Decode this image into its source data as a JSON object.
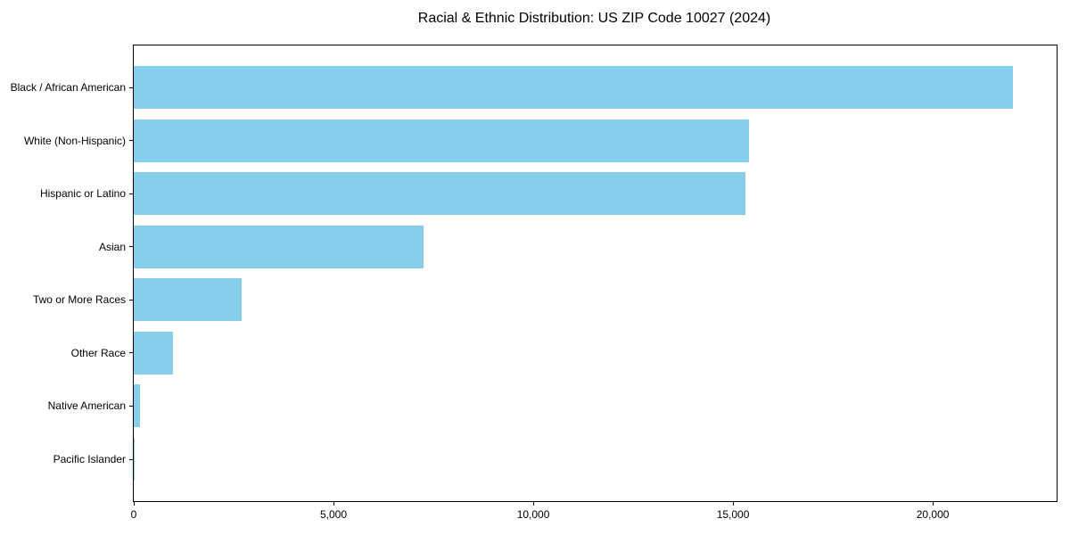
{
  "chart_data": {
    "type": "bar",
    "orientation": "horizontal",
    "title": "Racial & Ethnic Distribution: US ZIP Code 10027 (2024)",
    "categories": [
      "Black / African American",
      "White (Non-Hispanic)",
      "Hispanic or Latino",
      "Asian",
      "Two or More Races",
      "Other Race",
      "Native American",
      "Pacific Islander"
    ],
    "values": [
      22000,
      15400,
      15300,
      7250,
      2700,
      980,
      150,
      25
    ],
    "xlabel": "",
    "ylabel": "",
    "xlim": [
      0,
      23100
    ],
    "x_ticks": [
      0,
      5000,
      10000,
      15000,
      20000
    ],
    "x_tick_labels": [
      "0",
      "5,000",
      "10,000",
      "15,000",
      "20,000"
    ],
    "bar_color": "#87CEEB",
    "grid": false,
    "legend": "none"
  }
}
